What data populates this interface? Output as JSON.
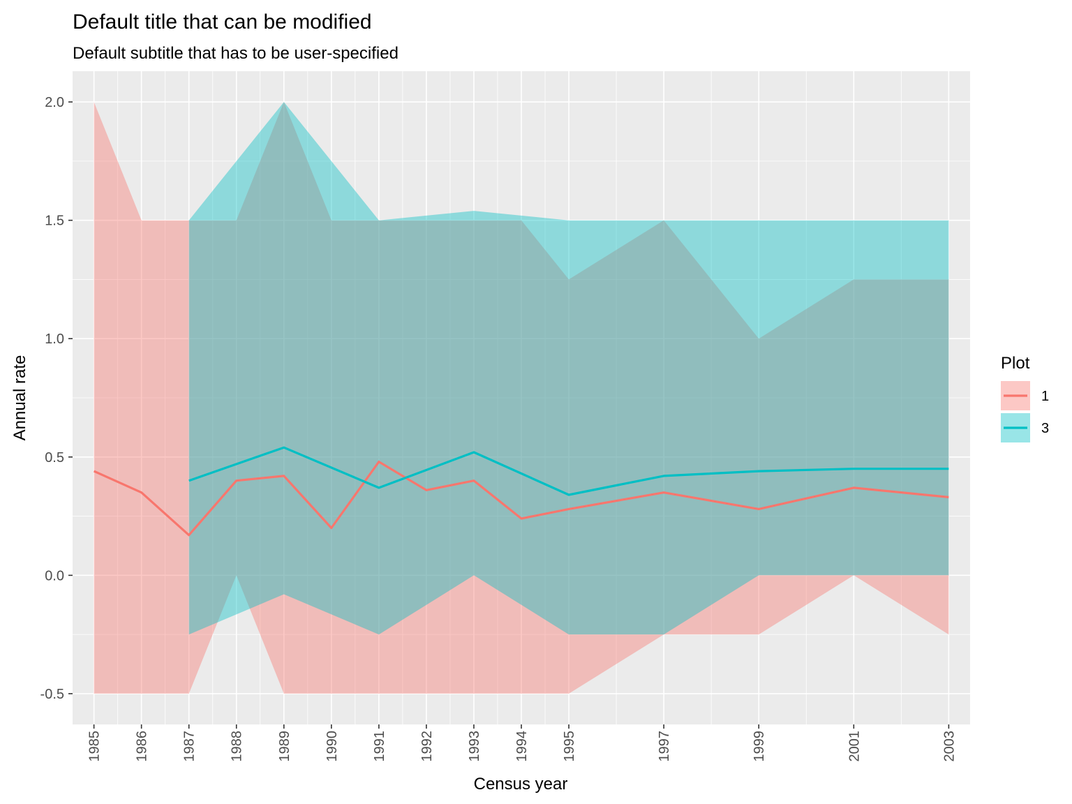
{
  "chart_data": {
    "type": "area",
    "title": "Default title that can be modified",
    "subtitle": "Default subtitle that has to be user-specified",
    "xlabel": "Census year",
    "ylabel": "Annual rate",
    "xlim": [
      1984.55,
      2003.45
    ],
    "ylim": [
      -0.63,
      2.13
    ],
    "x_ticks": [
      1985,
      1986,
      1987,
      1988,
      1989,
      1990,
      1991,
      1992,
      1993,
      1994,
      1995,
      1997,
      1999,
      2001,
      2003
    ],
    "y_ticks": [
      -0.5,
      0.0,
      0.5,
      1.0,
      1.5,
      2.0
    ],
    "y_tick_labels": [
      "-0.5",
      "0.0",
      "0.5",
      "1.0",
      "1.5",
      "2.0"
    ],
    "grid": true,
    "legend": {
      "title": "Plot",
      "position": "right"
    },
    "series": [
      {
        "name": "1",
        "color": "#F8766D",
        "x": [
          1985,
          1986,
          1987,
          1988,
          1989,
          1990,
          1991,
          1992,
          1993,
          1994,
          1995,
          1997,
          1999,
          2001,
          2003
        ],
        "mean": [
          0.44,
          0.35,
          0.17,
          0.4,
          0.42,
          0.2,
          0.48,
          0.36,
          0.4,
          0.24,
          0.28,
          0.35,
          0.28,
          0.37,
          0.33
        ],
        "upper": [
          2.0,
          1.5,
          1.5,
          1.5,
          2.0,
          1.5,
          1.5,
          1.5,
          1.5,
          1.5,
          1.25,
          1.5,
          1.0,
          1.25,
          1.25
        ],
        "lower": [
          -0.5,
          -0.5,
          -0.5,
          0.0,
          -0.5,
          -0.5,
          -0.5,
          -0.5,
          -0.5,
          -0.5,
          -0.5,
          -0.25,
          -0.25,
          0.0,
          -0.25
        ]
      },
      {
        "name": "3",
        "color": "#00BFC4",
        "x": [
          1987,
          1989,
          1991,
          1993,
          1995,
          1997,
          1999,
          2001,
          2003
        ],
        "mean": [
          0.4,
          0.54,
          0.37,
          0.52,
          0.34,
          0.42,
          0.44,
          0.45,
          0.45
        ],
        "upper": [
          1.5,
          2.0,
          1.5,
          1.54,
          1.5,
          1.5,
          1.5,
          1.5,
          1.5
        ],
        "lower": [
          -0.25,
          -0.08,
          -0.25,
          0.0,
          -0.25,
          -0.25,
          0.0,
          0.0,
          0.0
        ]
      }
    ]
  }
}
